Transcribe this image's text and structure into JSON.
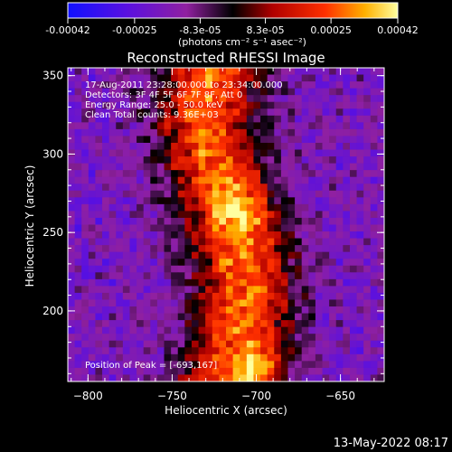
{
  "chart_data": {
    "type": "heatmap",
    "title": "Reconstructed RHESSI Image",
    "xlabel": "Heliocentric X (arcsec)",
    "ylabel": "Heliocentric Y (arcsec)",
    "xlim": [
      -812,
      -624
    ],
    "ylim": [
      155,
      355
    ],
    "x_ticks": [
      -800,
      -750,
      -700,
      -650
    ],
    "y_ticks": [
      200,
      250,
      300,
      350
    ],
    "colorbar": {
      "min": -0.00042,
      "max": 0.00042,
      "tick_values": [
        -0.00042,
        -0.00025,
        -8.3e-05,
        8.3e-05,
        0.00025,
        0.00042
      ],
      "tick_labels": [
        "-0.00042",
        "-0.00025",
        "-8.3e-05",
        "8.3e-05",
        "0.00025",
        "0.00042"
      ],
      "unit_label": "(photons cm⁻² s⁻¹ asec⁻²)"
    },
    "annotations": [
      "17-Aug-2011 23:28:00.000 to 23:34:00.000",
      "Detectors: 3F 4F 5F 6F 7F 8F, Att 0",
      "Energy Range: 25.0 - 50.0 keV",
      "Clean      Total counts: 9.36E+03"
    ],
    "peak_label": "Position of Peak = [-693,167]",
    "grid": false
  },
  "footer": {
    "timestamp": "13-May-2022 08:17"
  }
}
